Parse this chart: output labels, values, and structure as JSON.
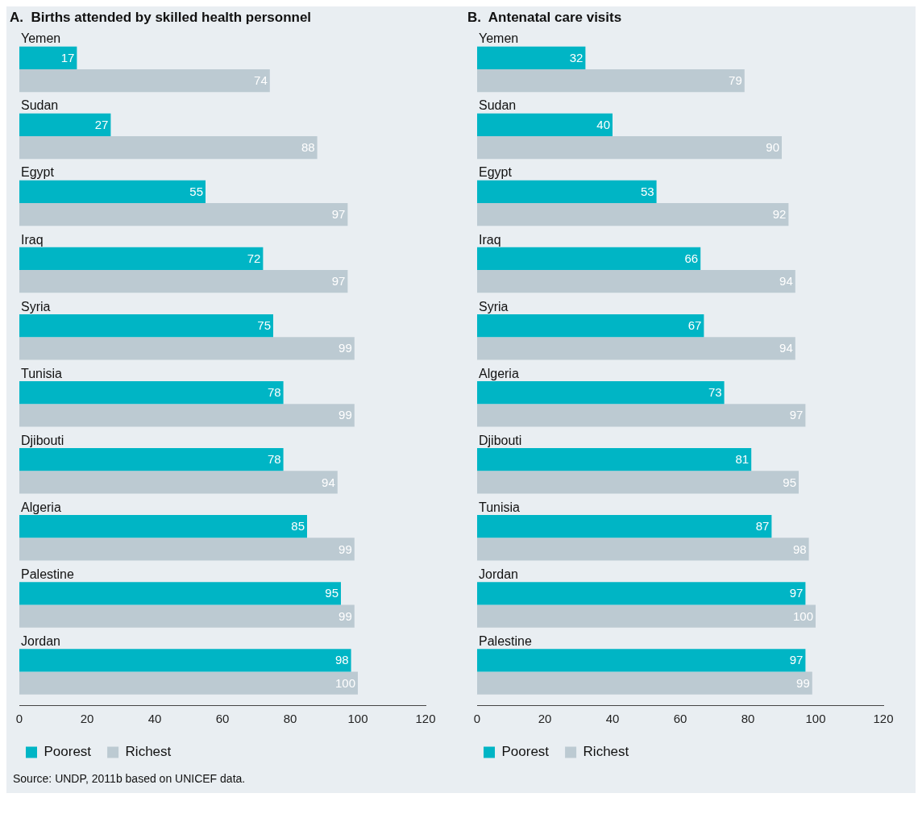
{
  "chart_data": [
    {
      "type": "bar",
      "orientation": "horizontal",
      "title": "A.  Births attended by skilled health personnel",
      "categories": [
        "Yemen",
        "Sudan",
        "Egypt",
        "Iraq",
        "Syria",
        "Tunisia",
        "Djibouti",
        "Algeria",
        "Palestine",
        "Jordan"
      ],
      "series": [
        {
          "name": "Poorest",
          "color": "#00b5c5",
          "values": [
            17,
            27,
            55,
            72,
            75,
            78,
            78,
            85,
            95,
            98
          ]
        },
        {
          "name": "Richest",
          "color": "#bccad2",
          "values": [
            74,
            88,
            97,
            97,
            99,
            99,
            94,
            99,
            99,
            100
          ]
        }
      ],
      "xlim": [
        0,
        120
      ],
      "xticks": [
        0,
        20,
        40,
        60,
        80,
        100,
        120
      ],
      "data_labels": true,
      "legend": "bottom left",
      "annotations": [
        "Source: UNDP, 2011b based on UNICEF data."
      ]
    },
    {
      "type": "bar",
      "orientation": "horizontal",
      "title": "B.  Antenatal care visits",
      "categories": [
        "Yemen",
        "Sudan",
        "Egypt",
        "Iraq",
        "Syria",
        "Algeria",
        "Djibouti",
        "Tunisia",
        "Jordan",
        "Palestine"
      ],
      "series": [
        {
          "name": "Poorest",
          "color": "#00b5c5",
          "values": [
            32,
            40,
            53,
            66,
            67,
            73,
            81,
            87,
            97,
            97
          ]
        },
        {
          "name": "Richest",
          "color": "#bccad2",
          "values": [
            79,
            90,
            92,
            94,
            94,
            97,
            95,
            98,
            100,
            99
          ]
        }
      ],
      "xlim": [
        0,
        120
      ],
      "xticks": [
        0,
        20,
        40,
        60,
        80,
        100,
        120
      ],
      "data_labels": true,
      "legend": "bottom left"
    }
  ]
}
